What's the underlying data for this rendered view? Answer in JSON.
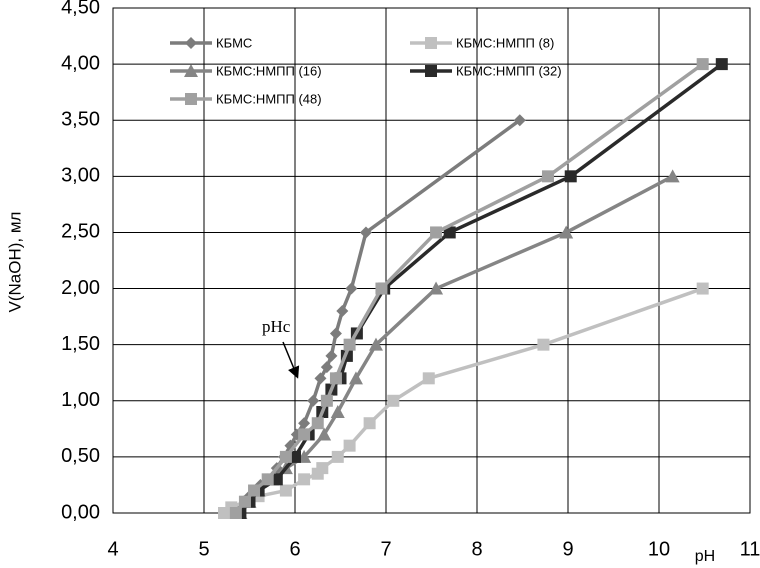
{
  "chart_data": {
    "type": "line",
    "x_label": "pH",
    "y_label": "V(NaOH), мл",
    "annotations": [
      "pHc"
    ],
    "xlim": [
      4,
      11
    ],
    "xticks": [
      4,
      5,
      6,
      7,
      8,
      9,
      10,
      11
    ],
    "ylim": [
      0,
      4.5
    ],
    "yticks": [
      {
        "value": 0,
        "label": "0,00"
      },
      {
        "value": 0.5,
        "label": "0,50"
      },
      {
        "value": 1,
        "label": "1,00"
      },
      {
        "value": 1.5,
        "label": "1,50"
      },
      {
        "value": 2,
        "label": "2,00"
      },
      {
        "value": 2.5,
        "label": "2,50"
      },
      {
        "value": 3,
        "label": "3,00"
      },
      {
        "value": 3.5,
        "label": "3,50"
      },
      {
        "value": 4,
        "label": "4,00"
      },
      {
        "value": 4.5,
        "label": "4,50"
      }
    ],
    "grid": true,
    "legend": "top-left",
    "series": [
      {
        "name": "КБМС",
        "color": "#7c7c7c",
        "marker": "diamond",
        "x": [
          5.35,
          5.4,
          5.45,
          5.5,
          5.55,
          5.62,
          5.7,
          5.8,
          5.88,
          5.95,
          6.02,
          6.1,
          6.2,
          6.28,
          6.35,
          6.4,
          6.45,
          6.52,
          6.62,
          6.78,
          8.47
        ],
        "values": [
          0,
          0.05,
          0.1,
          0.15,
          0.2,
          0.25,
          0.3,
          0.4,
          0.5,
          0.6,
          0.7,
          0.8,
          1.0,
          1.2,
          1.3,
          1.4,
          1.6,
          1.8,
          2.0,
          2.5,
          3.5
        ]
      },
      {
        "name": "КБМС:НМПП (8)",
        "color": "#c0c0c0",
        "marker": "square",
        "x": [
          5.22,
          5.3,
          5.45,
          5.6,
          5.9,
          6.1,
          6.25,
          6.3,
          6.47,
          6.6,
          6.82,
          7.08,
          7.47,
          8.73,
          10.48
        ],
        "values": [
          0,
          0.05,
          0.1,
          0.15,
          0.2,
          0.3,
          0.35,
          0.4,
          0.5,
          0.6,
          0.8,
          1.0,
          1.2,
          1.5,
          2.0
        ]
      },
      {
        "name": "КБМС:НМПП (16)",
        "color": "#858585",
        "marker": "triangle",
        "x": [
          5.4,
          5.5,
          5.6,
          5.75,
          5.9,
          6.1,
          6.32,
          6.47,
          6.67,
          6.89,
          7.55,
          8.98,
          10.15
        ],
        "values": [
          0,
          0.1,
          0.2,
          0.3,
          0.4,
          0.5,
          0.7,
          0.9,
          1.2,
          1.5,
          2.0,
          2.5,
          3.0
        ]
      },
      {
        "name": "КБМС:НМПП (32)",
        "color": "#2a2a2a",
        "marker": "square",
        "x": [
          5.4,
          5.5,
          5.6,
          5.8,
          6.0,
          6.15,
          6.3,
          6.4,
          6.5,
          6.57,
          6.68,
          6.98,
          7.7,
          9.03,
          10.69
        ],
        "values": [
          0,
          0.1,
          0.2,
          0.3,
          0.5,
          0.7,
          0.9,
          1.1,
          1.2,
          1.4,
          1.6,
          2.0,
          2.5,
          3.0,
          4.0
        ]
      },
      {
        "name": "КБМС:НМПП (48)",
        "color": "#a0a0a0",
        "marker": "square",
        "x": [
          5.35,
          5.45,
          5.55,
          5.7,
          5.9,
          6.1,
          6.25,
          6.35,
          6.45,
          6.6,
          6.95,
          7.55,
          8.78,
          10.48
        ],
        "values": [
          0,
          0.1,
          0.2,
          0.3,
          0.5,
          0.7,
          0.8,
          1.0,
          1.2,
          1.5,
          2.0,
          2.5,
          3.0,
          4.0
        ]
      }
    ]
  }
}
